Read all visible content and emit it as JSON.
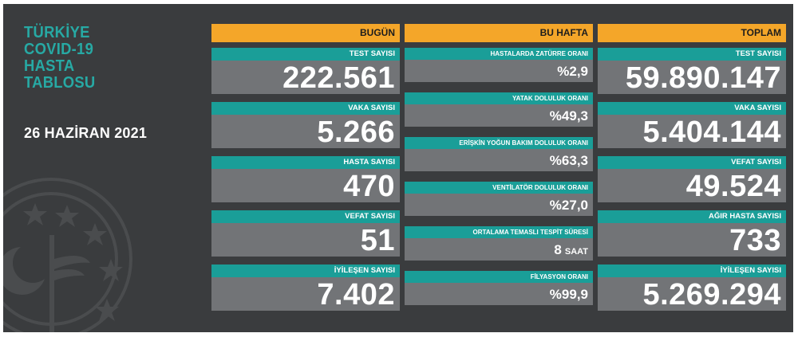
{
  "header": {
    "title_lines": [
      "TÜRKİYE",
      "COVID-19",
      "HASTA",
      "TABLOSU"
    ],
    "date": "26 HAZİRAN 2021"
  },
  "today": {
    "header": "BUGÜN",
    "items": [
      {
        "label": "TEST SAYISI",
        "value": "222.561"
      },
      {
        "label": "VAKA SAYISI",
        "value": "5.266"
      },
      {
        "label": "HASTA SAYISI",
        "value": "470"
      },
      {
        "label": "VEFAT SAYISI",
        "value": "51"
      },
      {
        "label": "İYİLEŞEN SAYISI",
        "value": "7.402"
      }
    ]
  },
  "week": {
    "header": "BU HAFTA",
    "items": [
      {
        "label": "HASTALARDA ZATÜRRE ORANI",
        "value": "%2,9"
      },
      {
        "label": "YATAK DOLULUK ORANI",
        "value": "%49,3"
      },
      {
        "label": "ERİŞKİN YOĞUN BAKIM DOLULUK ORANI",
        "value": "%63,3"
      },
      {
        "label": "VENTİLATÖR DOLULUK ORANI",
        "value": "%27,0"
      },
      {
        "label": "ORTALAMA TEMASLI TESPİT SÜRESİ",
        "value": "8",
        "unit": "SAAT"
      },
      {
        "label": "FİLYASYON ORANI",
        "value": "%99,9"
      }
    ]
  },
  "total": {
    "header": "TOPLAM",
    "items": [
      {
        "label": "TEST SAYISI",
        "value": "59.890.147"
      },
      {
        "label": "VAKA SAYISI",
        "value": "5.404.144"
      },
      {
        "label": "VEFAT SAYISI",
        "value": "49.524"
      },
      {
        "label": "AĞIR HASTA SAYISI",
        "value": "733"
      },
      {
        "label": "İYİLEŞEN SAYISI",
        "value": "5.269.294"
      }
    ]
  },
  "colors": {
    "background": "#3a3c3e",
    "header_orange": "#f4a629",
    "label_teal": "#1a9e98",
    "value_gray": "#727477",
    "title_teal": "#27a9a4"
  },
  "icons": {
    "emblem": "ministry-of-health-emblem-icon"
  }
}
